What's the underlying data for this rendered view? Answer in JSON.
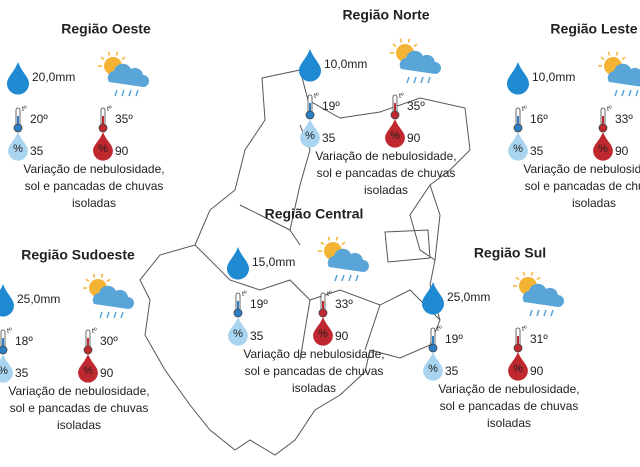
{
  "icon_labels": {
    "percent": "%",
    "temperature": "tº"
  },
  "regions": [
    {
      "name": "Região Oeste",
      "rain": "20,0mm",
      "temp_min": "20º",
      "temp_max": "35º",
      "humidity_min": "35",
      "humidity_max": "90",
      "description": [
        "Variação de nebulosidade,",
        "sol e pancadas de chuvas",
        "isoladas"
      ]
    },
    {
      "name": "Região Norte",
      "rain": "10,0mm",
      "temp_min": "19º",
      "temp_max": "35º",
      "humidity_min": "35",
      "humidity_max": "90",
      "description": [
        "Variação de nebulosidade,",
        "sol e pancadas de chuvas",
        "isoladas"
      ]
    },
    {
      "name": "Região Leste",
      "rain": "10,0mm",
      "temp_min": "16º",
      "temp_max": "33º",
      "humidity_min": "35",
      "humidity_max": "90",
      "description": [
        "Variação de nebulosidade,",
        "sol e pancadas de chuvas",
        "isoladas"
      ]
    },
    {
      "name": "Região Central",
      "rain": "15,0mm",
      "temp_min": "19º",
      "temp_max": "33º",
      "humidity_min": "35",
      "humidity_max": "90",
      "description": [
        "Variação de nebulosidade,",
        "sol e pancadas de chuvas",
        "isoladas"
      ]
    },
    {
      "name": "Região Sudoeste",
      "rain": "25,0mm",
      "temp_min": "18º",
      "temp_max": "30º",
      "humidity_min": "35",
      "humidity_max": "90",
      "description": [
        "Variação de nebulosidade,",
        "sol e pancadas de chuvas",
        "isoladas"
      ]
    },
    {
      "name": "Região Sul",
      "rain": "25,0mm",
      "temp_min": "19º",
      "temp_max": "31º",
      "humidity_min": "35",
      "humidity_max": "90",
      "description": [
        "Variação de nebulosidade,",
        "sol e pancadas de chuvas",
        "isoladas"
      ]
    }
  ]
}
